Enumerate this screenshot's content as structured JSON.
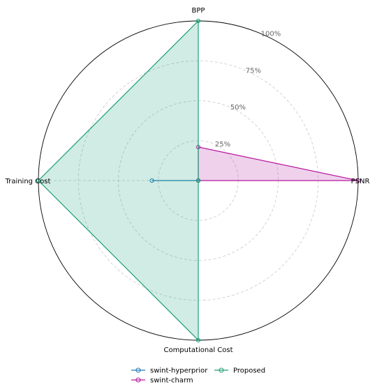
{
  "chart_data": {
    "type": "radar",
    "axes": [
      "PSNR",
      "BPP",
      "Training Cost",
      "Computational Cost"
    ],
    "rlim": [
      0,
      100
    ],
    "rings": [
      25,
      50,
      75,
      100
    ],
    "ring_labels": [
      "25%",
      "50%",
      "75%",
      "100%"
    ],
    "grid": true,
    "legend_position": "bottom",
    "series": [
      {
        "name": "swint-hyperprior",
        "color": "#1f77b4",
        "values": [
          0,
          0,
          29,
          0
        ],
        "filled": false
      },
      {
        "name": "swint-charm",
        "color": "#b5179e",
        "values": [
          100,
          21,
          0,
          0
        ],
        "filled": true
      },
      {
        "name": "Proposed",
        "color": "#1a9e77",
        "values": [
          0,
          100,
          100,
          100
        ],
        "filled": true
      }
    ]
  }
}
